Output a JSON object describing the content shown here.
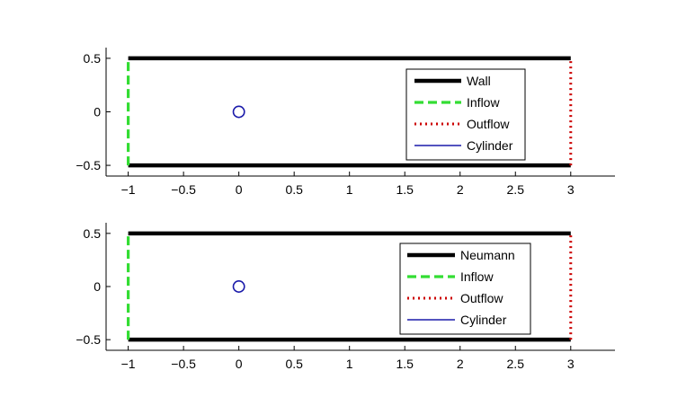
{
  "chart_data": [
    {
      "type": "line",
      "title": "",
      "xlabel": "",
      "ylabel": "",
      "xlim": [
        -1.2,
        3.4
      ],
      "ylim": [
        -0.6,
        0.6
      ],
      "xticks": [
        -1,
        -0.5,
        0,
        0.5,
        1,
        1.5,
        2,
        2.5,
        3
      ],
      "xtick_labels": [
        "−1",
        "−0.5",
        "0",
        "0.5",
        "1",
        "1.5",
        "2",
        "2.5",
        "3"
      ],
      "yticks": [
        0.5,
        0,
        -0.5
      ],
      "ytick_labels": [
        "0.5",
        "0",
        "−0.5"
      ],
      "grid": false,
      "legend_position": "right",
      "series": [
        {
          "name": "Wall",
          "style": "solid",
          "color": "#000000",
          "segments": [
            [
              [
                -1,
                0.5
              ],
              [
                3,
                0.5
              ]
            ],
            [
              [
                -1,
                -0.5
              ],
              [
                3,
                -0.5
              ]
            ]
          ]
        },
        {
          "name": "Inflow",
          "style": "dashed",
          "color": "#33dd33",
          "segments": [
            [
              [
                -1,
                -0.5
              ],
              [
                -1,
                0.5
              ]
            ]
          ]
        },
        {
          "name": "Outflow",
          "style": "dotted",
          "color": "#cc0000",
          "segments": [
            [
              [
                3,
                -0.5
              ],
              [
                3,
                0.5
              ]
            ]
          ]
        },
        {
          "name": "Cylinder",
          "style": "solid",
          "color": "#1a1aaa",
          "circle": {
            "cx": 0,
            "cy": 0,
            "r": 0.05
          }
        }
      ]
    },
    {
      "type": "line",
      "title": "",
      "xlabel": "",
      "ylabel": "",
      "xlim": [
        -1.2,
        3.4
      ],
      "ylim": [
        -0.6,
        0.6
      ],
      "xticks": [
        -1,
        -0.5,
        0,
        0.5,
        1,
        1.5,
        2,
        2.5,
        3
      ],
      "xtick_labels": [
        "−1",
        "−0.5",
        "0",
        "0.5",
        "1",
        "1.5",
        "2",
        "2.5",
        "3"
      ],
      "yticks": [
        0.5,
        0,
        -0.5
      ],
      "ytick_labels": [
        "0.5",
        "0",
        "−0.5"
      ],
      "grid": false,
      "legend_position": "right",
      "series": [
        {
          "name": "Neumann",
          "style": "solid",
          "color": "#000000",
          "segments": [
            [
              [
                -1,
                0.5
              ],
              [
                3,
                0.5
              ]
            ],
            [
              [
                -1,
                -0.5
              ],
              [
                3,
                -0.5
              ]
            ]
          ]
        },
        {
          "name": "Inflow",
          "style": "dashed",
          "color": "#33dd33",
          "segments": [
            [
              [
                -1,
                -0.5
              ],
              [
                -1,
                0.5
              ]
            ]
          ]
        },
        {
          "name": "Outflow",
          "style": "dotted",
          "color": "#cc0000",
          "segments": [
            [
              [
                3,
                -0.5
              ],
              [
                3,
                0.5
              ]
            ]
          ]
        },
        {
          "name": "Cylinder",
          "style": "solid",
          "color": "#1a1aaa",
          "circle": {
            "cx": 0,
            "cy": 0,
            "r": 0.05
          }
        }
      ]
    }
  ]
}
